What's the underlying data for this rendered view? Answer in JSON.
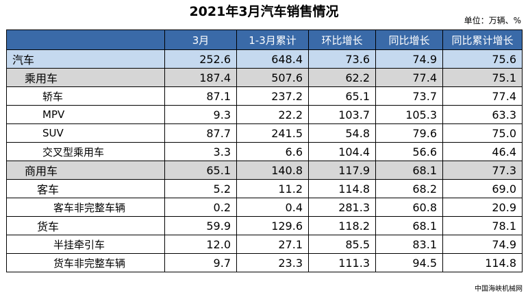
{
  "title": "2021年3月汽车销售情况",
  "unit": "单位：万辆、%",
  "columns": [
    "",
    "3月",
    "1-3月累计",
    "环比增长",
    "同比增长",
    "同比累计增长"
  ],
  "rows": [
    {
      "name": "汽车",
      "values": [
        "252.6",
        "648.4",
        "73.6",
        "74.9",
        "75.6"
      ]
    },
    {
      "name": "乘用车",
      "values": [
        "187.4",
        "507.6",
        "62.2",
        "77.4",
        "75.1"
      ]
    },
    {
      "name": "轿车",
      "values": [
        "87.1",
        "237.2",
        "65.1",
        "73.7",
        "77.4"
      ]
    },
    {
      "name": "MPV",
      "values": [
        "9.3",
        "22.2",
        "103.7",
        "105.3",
        "63.3"
      ]
    },
    {
      "name": "SUV",
      "values": [
        "87.7",
        "241.5",
        "54.8",
        "79.6",
        "75.0"
      ]
    },
    {
      "name": "交叉型乘用车",
      "values": [
        "3.3",
        "6.6",
        "104.4",
        "56.6",
        "46.4"
      ]
    },
    {
      "name": "商用车",
      "values": [
        "65.1",
        "140.8",
        "117.9",
        "68.1",
        "77.3"
      ]
    },
    {
      "name": "客车",
      "values": [
        "5.2",
        "11.2",
        "114.8",
        "68.2",
        "69.0"
      ]
    },
    {
      "name": "客车非完整车辆",
      "values": [
        "0.2",
        "0.4",
        "281.3",
        "60.8",
        "20.9"
      ]
    },
    {
      "name": "货车",
      "values": [
        "59.9",
        "129.6",
        "118.2",
        "68.1",
        "78.1"
      ]
    },
    {
      "name": "半挂牵引车",
      "values": [
        "12.0",
        "27.1",
        "85.5",
        "83.1",
        "74.9"
      ]
    },
    {
      "name": "货车非完整车辆",
      "values": [
        "9.7",
        "23.3",
        "111.3",
        "94.5",
        "114.8"
      ]
    }
  ],
  "source": "中国海峡机械网",
  "colors": {
    "header": "#3a6aa8",
    "total_row": "#c5d9ef",
    "group_row": "#d6d6d6"
  }
}
